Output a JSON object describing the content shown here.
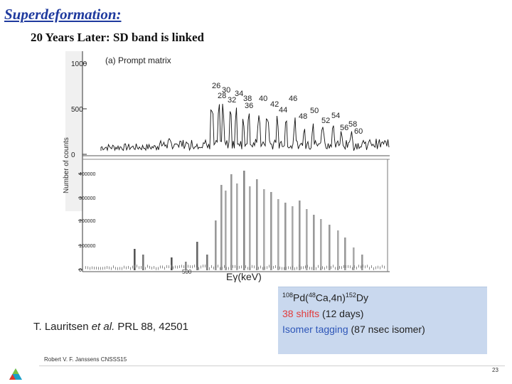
{
  "slide": {
    "title": "Superdeformation:",
    "subtitle": "20 Years Later: SD band is linked",
    "citation": {
      "authors": "T. Lauritsen ",
      "etal": "et al.",
      "journal": " PRL 88, 42501"
    },
    "infobox": {
      "reaction_parts": [
        "108",
        "Pd(",
        "48",
        "Ca,4n)",
        "152",
        "Dy"
      ],
      "shifts_highlight": "38 shifts",
      "shifts_rest": " (12  days)",
      "isomer_highlight": "Isomer tagging",
      "isomer_rest": " (87 nsec isomer)"
    },
    "footer": {
      "author": "Robert V. F. Janssens CNSSS15",
      "page": "23"
    },
    "colors": {
      "title": "#1f3a9e",
      "infobox_bg": "#c9d8ee",
      "highlight_red": "#e23b3b",
      "highlight_blue": "#2e56b8"
    },
    "icons": {
      "logo": "argonne-logo-icon"
    }
  },
  "figure": {
    "panel_a_label": "(a) Prompt matrix",
    "y_axis_label": "Number of counts",
    "x_axis_label": "Eγ(keV)",
    "top_ticks": [
      "1000",
      "500",
      "0"
    ],
    "bottom_ticks": [
      "400000",
      "300000",
      "200000",
      "100000",
      "0"
    ],
    "x_ticks": [
      "500"
    ],
    "peak_labels": [
      "26",
      "30",
      "28",
      "32",
      "34",
      "38",
      "36",
      "40",
      "42",
      "44",
      "46",
      "48",
      "50",
      "52",
      "54",
      "56",
      "58",
      "60"
    ]
  }
}
